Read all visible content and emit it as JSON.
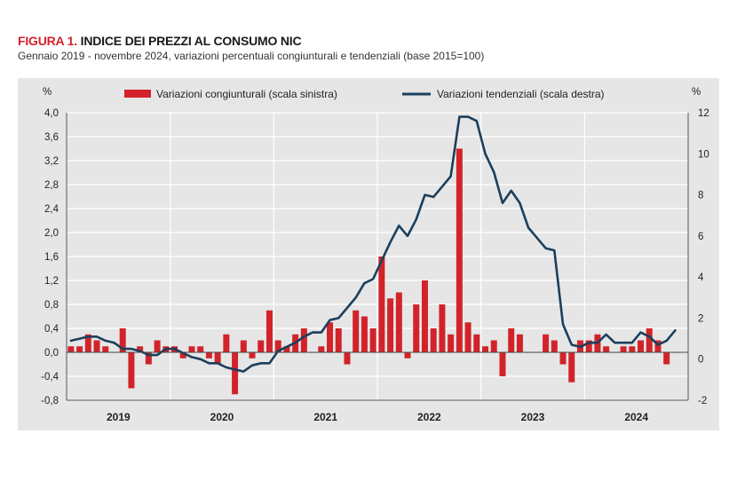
{
  "figure": {
    "label": "FIGURA 1.",
    "title": "INDICE DEI PREZZI AL CONSUMO NIC",
    "subtitle": "Gennaio 2019 - novembre 2024, variazioni percentuali congiunturali e tendenziali (base 2015=100)"
  },
  "colors": {
    "bars": "#d2232a",
    "line": "#1b3f5c",
    "plot_bg": "#e6e6e6",
    "grid": "#ffffff"
  },
  "chart_data": {
    "type": "bar+line",
    "legend_position": "top",
    "grid": true,
    "y_left": {
      "unit": "%",
      "ylim": [
        -0.8,
        4.0
      ],
      "ticks": [
        "4,0",
        "3,6",
        "3,2",
        "2,8",
        "2,4",
        "2,0",
        "1,6",
        "1,2",
        "0,8",
        "0,4",
        "0,0",
        "-0,4",
        "-0,8"
      ]
    },
    "y_right": {
      "unit": "%",
      "ylim": [
        -2,
        12
      ],
      "ticks": [
        "12",
        "10",
        "8",
        "6",
        "4",
        "2",
        "0",
        "-2"
      ]
    },
    "years": [
      "2019",
      "2020",
      "2021",
      "2022",
      "2023",
      "2024"
    ],
    "series": [
      {
        "name": "Variazioni congiunturali (scala sinistra)",
        "type": "bar",
        "axis": "left",
        "values": [
          0.1,
          0.1,
          0.3,
          0.2,
          0.1,
          0.0,
          0.4,
          -0.6,
          0.1,
          -0.2,
          0.2,
          0.1,
          0.1,
          -0.1,
          0.1,
          0.1,
          -0.1,
          -0.2,
          0.3,
          -0.7,
          0.2,
          -0.1,
          0.2,
          0.7,
          0.2,
          0.1,
          0.3,
          0.4,
          0.0,
          0.1,
          0.5,
          0.4,
          -0.2,
          0.7,
          0.6,
          0.4,
          1.6,
          0.9,
          1.0,
          -0.1,
          0.8,
          1.2,
          0.4,
          0.8,
          0.3,
          3.4,
          0.5,
          0.3,
          0.1,
          0.2,
          -0.4,
          0.4,
          0.3,
          0.0,
          0.0,
          0.3,
          0.2,
          -0.2,
          -0.5,
          0.2,
          0.2,
          0.3,
          0.1,
          0.0,
          0.1,
          0.1,
          0.2,
          0.4,
          0.2,
          -0.2,
          0.0
        ]
      },
      {
        "name": "Variazioni tendenziali (scala destra)",
        "type": "line",
        "axis": "right",
        "values": [
          0.9,
          1.0,
          1.1,
          1.1,
          0.9,
          0.8,
          0.5,
          0.5,
          0.4,
          0.2,
          0.2,
          0.5,
          0.5,
          0.3,
          0.1,
          0.0,
          -0.2,
          -0.2,
          -0.4,
          -0.5,
          -0.6,
          -0.3,
          -0.2,
          -0.2,
          0.4,
          0.6,
          0.8,
          1.1,
          1.3,
          1.3,
          1.9,
          2.0,
          2.5,
          3.0,
          3.7,
          3.9,
          4.8,
          5.7,
          6.5,
          6.0,
          6.8,
          8.0,
          7.9,
          8.4,
          8.9,
          11.8,
          11.8,
          11.6,
          10.0,
          9.1,
          7.6,
          8.2,
          7.6,
          6.4,
          5.9,
          5.4,
          5.3,
          1.7,
          0.7,
          0.6,
          0.8,
          0.8,
          1.2,
          0.8,
          0.8,
          0.8,
          1.3,
          1.1,
          0.7,
          0.9,
          1.4
        ]
      }
    ]
  }
}
